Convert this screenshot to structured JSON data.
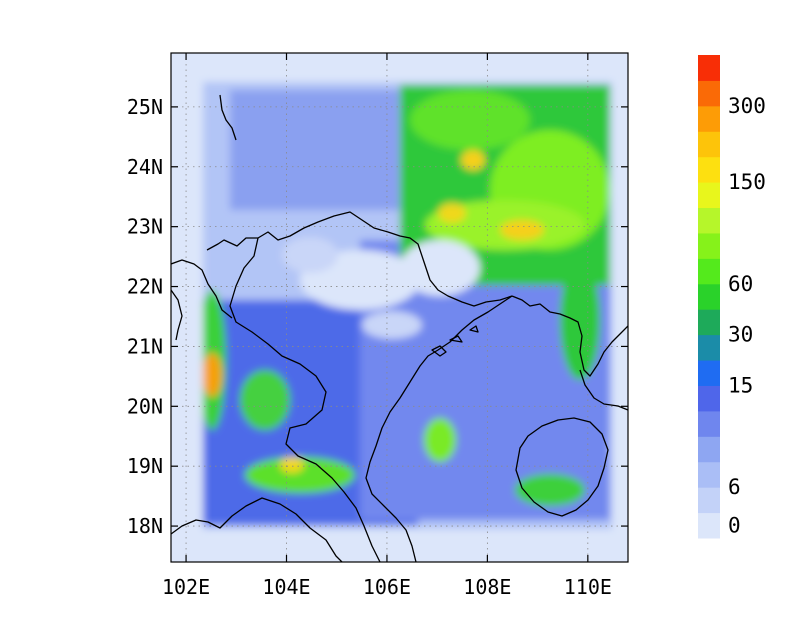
{
  "map": {
    "extent": {
      "lon": [
        101.7,
        110.8
      ],
      "lat": [
        17.4,
        25.9
      ]
    },
    "lon_ticks": [
      {
        "value": 102,
        "label": "102E"
      },
      {
        "value": 104,
        "label": "104E"
      },
      {
        "value": 106,
        "label": "106E"
      },
      {
        "value": 108,
        "label": "108E"
      },
      {
        "value": 110,
        "label": "110E"
      }
    ],
    "lat_ticks": [
      {
        "value": 18,
        "label": "18N"
      },
      {
        "value": 19,
        "label": "19N"
      },
      {
        "value": 20,
        "label": "20N"
      },
      {
        "value": 21,
        "label": "21N"
      },
      {
        "value": 22,
        "label": "22N"
      },
      {
        "value": 23,
        "label": "23N"
      },
      {
        "value": 24,
        "label": "24N"
      },
      {
        "value": 25,
        "label": "25N"
      }
    ],
    "gridlines": true
  },
  "colorbar": {
    "placement": "right",
    "colors": [
      "#dce6fa",
      "#c3d2f8",
      "#aabef6",
      "#8ea6f2",
      "#6f86ee",
      "#4f66ea",
      "#1f6cf2",
      "#1b8ca8",
      "#1eaa5a",
      "#2ad22a",
      "#54ea1c",
      "#86f21a",
      "#b6f62a",
      "#e8f61c",
      "#fde010",
      "#fdc40a",
      "#fd9c06",
      "#fa6a06",
      "#f82e06"
    ],
    "labels": [
      {
        "value": "0",
        "index": 0
      },
      {
        "value": "6",
        "index": 2
      },
      {
        "value": "15",
        "index": 6
      },
      {
        "value": "30",
        "index": 8
      },
      {
        "value": "60",
        "index": 10
      },
      {
        "value": "150",
        "index": 14
      },
      {
        "value": "300",
        "index": 17
      }
    ]
  }
}
